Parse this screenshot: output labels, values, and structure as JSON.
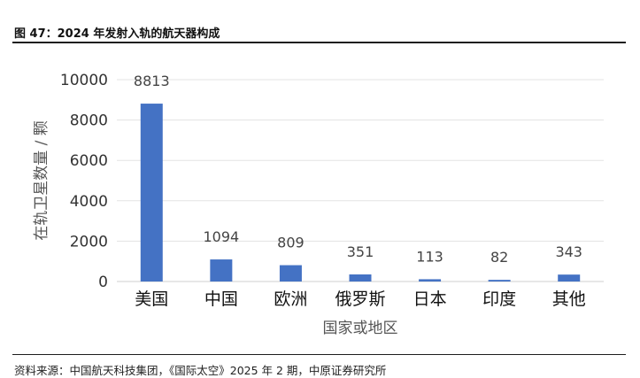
{
  "header": {
    "figure_title": "图 47：2024 年发射入轨的航天器构成"
  },
  "footer": {
    "source": "资料来源：中国航天科技集团，《国际太空》2025 年 2 期，中原证券研究所"
  },
  "chart_data": {
    "type": "bar",
    "categories": [
      "美国",
      "中国",
      "欧洲",
      "俄罗斯",
      "日本",
      "印度",
      "其他"
    ],
    "values": [
      8813,
      1094,
      809,
      351,
      113,
      82,
      343
    ],
    "data_labels": [
      "8813",
      "1094",
      "809",
      "351",
      "113",
      "82",
      "343"
    ],
    "ylim": [
      0,
      10000
    ],
    "yticks": [
      0,
      2000,
      4000,
      6000,
      8000,
      10000
    ],
    "ytick_labels": [
      "0",
      "2000",
      "4000",
      "6000",
      "8000",
      "10000"
    ],
    "xlabel": "国家或地区",
    "ylabel": "在轨卫星数量 / 颗",
    "bar_color": "#4472c4",
    "grid": true,
    "legend": "none"
  }
}
